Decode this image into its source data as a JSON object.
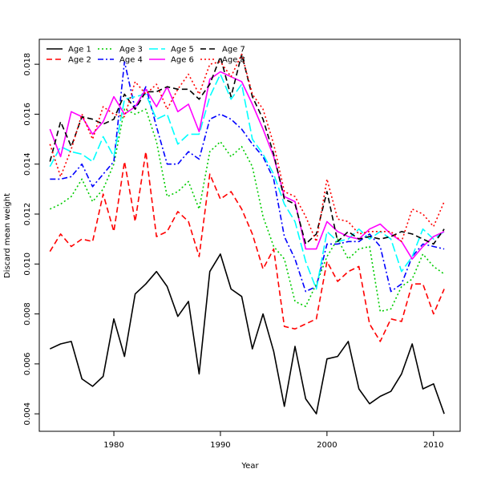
{
  "chart_data": {
    "type": "line",
    "xlabel": "Year",
    "ylabel": "Discard mean weight",
    "xlim": [
      1973,
      2012.5
    ],
    "ylim": [
      0.0033,
      0.019
    ],
    "x_ticks": [
      1980,
      1990,
      2000,
      2010
    ],
    "y_ticks": [
      0.004,
      0.006,
      0.008,
      0.01,
      0.012,
      0.014,
      0.016,
      0.018
    ],
    "legend_position": "top-left",
    "x": [
      1974,
      1975,
      1976,
      1977,
      1978,
      1979,
      1980,
      1981,
      1982,
      1983,
      1984,
      1985,
      1986,
      1987,
      1988,
      1989,
      1990,
      1991,
      1992,
      1993,
      1994,
      1995,
      1996,
      1997,
      1998,
      1999,
      2000,
      2001,
      2002,
      2003,
      2004,
      2005,
      2006,
      2007,
      2008,
      2009,
      2010,
      2011
    ],
    "series": [
      {
        "name": "Age 1",
        "color": "#000000",
        "dash": "solid",
        "values": [
          0.0066,
          0.0068,
          0.0069,
          0.0054,
          0.0051,
          0.0055,
          0.0078,
          0.0063,
          0.0088,
          0.0092,
          0.0097,
          0.0091,
          0.0079,
          0.0085,
          0.0056,
          0.0097,
          0.0104,
          0.009,
          0.0087,
          0.0066,
          0.008,
          0.0065,
          0.0043,
          0.0067,
          0.0046,
          0.004,
          0.0062,
          0.0063,
          0.0069,
          0.005,
          0.0044,
          0.0047,
          0.0049,
          0.0056,
          0.0068,
          0.005,
          0.0052,
          0.004
        ]
      },
      {
        "name": "Age 2",
        "color": "#ff0000",
        "dash": "dashed",
        "values": [
          0.0105,
          0.0112,
          0.0107,
          0.011,
          0.0109,
          0.0128,
          0.0113,
          0.0141,
          0.0117,
          0.0145,
          0.0111,
          0.0113,
          0.0121,
          0.0117,
          0.0103,
          0.0136,
          0.0126,
          0.0129,
          0.0122,
          0.0112,
          0.0098,
          0.0106,
          0.0075,
          0.0074,
          0.0076,
          0.0078,
          0.0101,
          0.0093,
          0.0097,
          0.0099,
          0.0076,
          0.0069,
          0.0078,
          0.0077,
          0.0092,
          0.0092,
          0.008,
          0.009
        ]
      },
      {
        "name": "Age 3",
        "color": "#00cc00",
        "dash": "dotted",
        "values": [
          0.0122,
          0.0124,
          0.0127,
          0.0134,
          0.0125,
          0.013,
          0.014,
          0.0162,
          0.016,
          0.0162,
          0.0149,
          0.0127,
          0.0129,
          0.0133,
          0.0122,
          0.0145,
          0.0149,
          0.0143,
          0.0147,
          0.0139,
          0.0119,
          0.0107,
          0.0102,
          0.0085,
          0.0083,
          0.0092,
          0.0103,
          0.011,
          0.0102,
          0.0106,
          0.0107,
          0.0081,
          0.0082,
          0.0091,
          0.0094,
          0.0104,
          0.0099,
          0.0096
        ]
      },
      {
        "name": "Age 4",
        "color": "#0000ff",
        "dash": "dashdot",
        "values": [
          0.0134,
          0.0134,
          0.0135,
          0.014,
          0.0131,
          0.0136,
          0.0141,
          0.0181,
          0.0162,
          0.0171,
          0.0155,
          0.014,
          0.014,
          0.0145,
          0.0142,
          0.0158,
          0.016,
          0.0158,
          0.0154,
          0.0148,
          0.0143,
          0.0134,
          0.0111,
          0.0102,
          0.0089,
          0.0091,
          0.0108,
          0.0108,
          0.0109,
          0.0109,
          0.0112,
          0.0107,
          0.0089,
          0.0092,
          0.0103,
          0.0108,
          0.0107,
          0.0106
        ]
      },
      {
        "name": "Age 5",
        "color": "#00ffff",
        "dash": "longdash",
        "values": [
          0.0139,
          0.0147,
          0.0145,
          0.0144,
          0.0141,
          0.0151,
          0.0143,
          0.0166,
          0.0167,
          0.0168,
          0.0158,
          0.016,
          0.0148,
          0.0152,
          0.0152,
          0.0167,
          0.0176,
          0.0166,
          0.0172,
          0.015,
          0.0144,
          0.0136,
          0.0124,
          0.0117,
          0.0101,
          0.009,
          0.0113,
          0.0109,
          0.011,
          0.0114,
          0.011,
          0.0113,
          0.011,
          0.0097,
          0.0103,
          0.0114,
          0.011,
          0.0113
        ]
      },
      {
        "name": "Age 6",
        "color": "#ff00ff",
        "dash": "solid",
        "values": [
          0.0154,
          0.0143,
          0.0161,
          0.0159,
          0.0152,
          0.0157,
          0.0167,
          0.016,
          0.0163,
          0.017,
          0.0163,
          0.0171,
          0.0161,
          0.0164,
          0.0153,
          0.0174,
          0.0177,
          0.0175,
          0.0173,
          0.0164,
          0.0154,
          0.0143,
          0.0127,
          0.0125,
          0.0106,
          0.0106,
          0.0117,
          0.0113,
          0.0111,
          0.011,
          0.0114,
          0.0116,
          0.0112,
          0.0109,
          0.0102,
          0.0107,
          0.0111,
          0.0113
        ]
      },
      {
        "name": "Age 7",
        "color": "#000000",
        "dash": "dashed",
        "values": [
          0.0141,
          0.0157,
          0.0147,
          0.0159,
          0.0158,
          0.0156,
          0.0158,
          0.0168,
          0.0162,
          0.0169,
          0.0169,
          0.0171,
          0.017,
          0.017,
          0.0166,
          0.0172,
          0.0183,
          0.0167,
          0.0184,
          0.0167,
          0.0158,
          0.0144,
          0.0126,
          0.0124,
          0.0108,
          0.0112,
          0.0129,
          0.0109,
          0.0113,
          0.011,
          0.0111,
          0.011,
          0.0111,
          0.0113,
          0.0112,
          0.011,
          0.0108,
          0.0114
        ]
      },
      {
        "name": "Age 8",
        "color": "#ff0000",
        "dash": "dotted",
        "values": [
          0.0148,
          0.0135,
          0.0146,
          0.016,
          0.015,
          0.0163,
          0.016,
          0.0159,
          0.0173,
          0.0168,
          0.0172,
          0.0162,
          0.017,
          0.0176,
          0.0168,
          0.018,
          0.0181,
          0.0175,
          0.0184,
          0.0168,
          0.0162,
          0.0148,
          0.0129,
          0.0127,
          0.0119,
          0.0109,
          0.0134,
          0.0118,
          0.0117,
          0.0112,
          0.0113,
          0.0113,
          0.0113,
          0.0109,
          0.0122,
          0.012,
          0.0115,
          0.0125
        ]
      }
    ]
  }
}
